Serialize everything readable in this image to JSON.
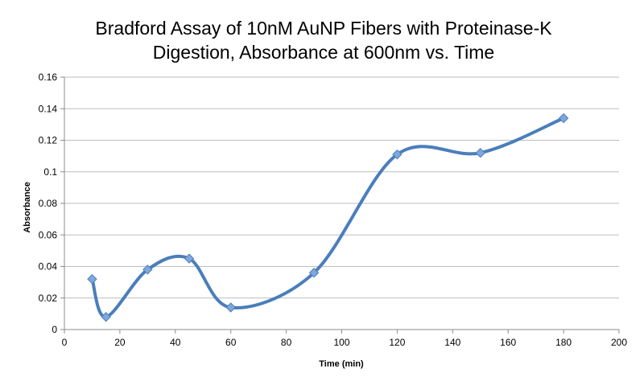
{
  "chart_data": {
    "type": "line",
    "title_lines": [
      "Bradford Assay of 10nM AuNP Fibers with Proteinase-K",
      "Digestion, Absorbance at 600nm vs. Time"
    ],
    "xlabel": "Time (min)",
    "ylabel": "Absorbance",
    "xlim": [
      0,
      200
    ],
    "ylim": [
      0,
      0.16
    ],
    "xticks": [
      "0",
      "20",
      "40",
      "60",
      "80",
      "100",
      "120",
      "140",
      "160",
      "180",
      "200"
    ],
    "yticks": [
      "0",
      "0.02",
      "0.04",
      "0.06",
      "0.08",
      "0.1",
      "0.12",
      "0.14",
      "0.16"
    ],
    "grid": "horizontal",
    "smooth": true,
    "series": [
      {
        "color": "#4a7ebb",
        "marker_color": "#7fa7dc",
        "x": [
          10,
          15,
          30,
          45,
          60,
          90,
          120,
          150,
          180
        ],
        "y": [
          0.032,
          0.008,
          0.038,
          0.045,
          0.014,
          0.036,
          0.111,
          0.112,
          0.134
        ]
      }
    ]
  }
}
